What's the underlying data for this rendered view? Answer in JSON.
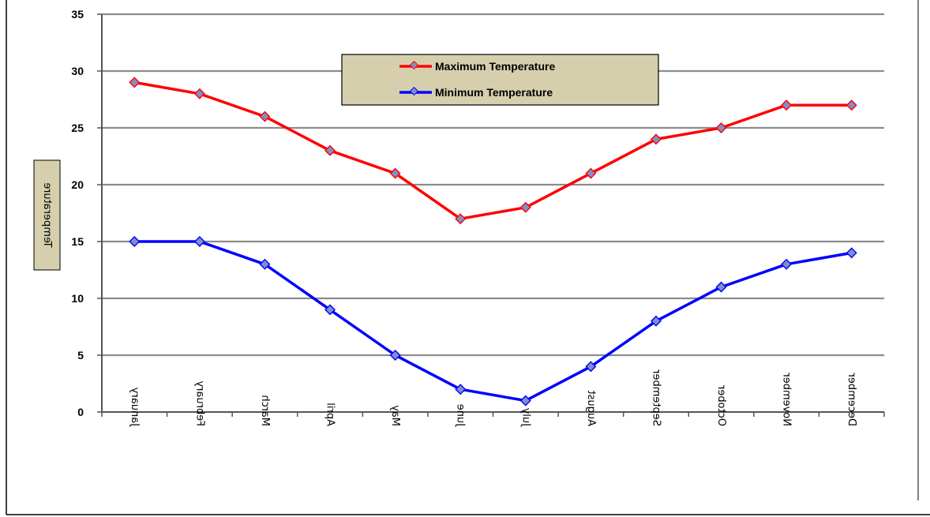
{
  "chart_data": {
    "type": "line",
    "categories": [
      "January",
      "February",
      "March",
      "April",
      "May",
      "June",
      "July",
      "August",
      "September",
      "October",
      "November",
      "December"
    ],
    "series": [
      {
        "name": "Maximum Temperature",
        "color": "#ff0000",
        "values": [
          29,
          28,
          26,
          23,
          21,
          17,
          18,
          21,
          24,
          25,
          27,
          27
        ]
      },
      {
        "name": "Minimum Temperature",
        "color": "#0000ff",
        "values": [
          15,
          15,
          13,
          9,
          5,
          2,
          1,
          4,
          8,
          11,
          13,
          14
        ]
      }
    ],
    "marker_color": "#7f8fc8",
    "ylim": [
      0,
      35
    ],
    "yticks": [
      0,
      5,
      10,
      15,
      20,
      25,
      30,
      35
    ],
    "ylabel": "Temperature",
    "grid": true,
    "legend": {
      "placement": "top-center",
      "background": "#d6cfad"
    }
  }
}
